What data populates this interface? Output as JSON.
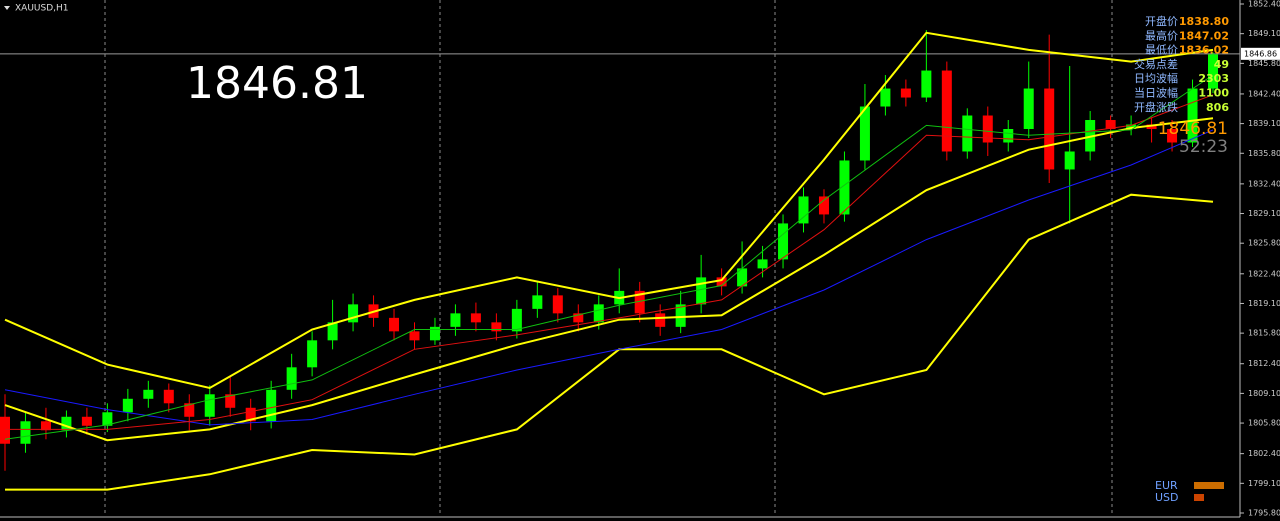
{
  "chart_data": {
    "type": "candlestick",
    "title": "XAUUSD,H1",
    "price_display": "1846.81",
    "countdown": "52:23",
    "last_price": {
      "value": 1846.86,
      "label": "1846.86"
    },
    "up_color": "#00ff00",
    "down_color": "#ff0000",
    "ylim": [
      1795.8,
      1852.4
    ],
    "yticks": [
      {
        "value": 1852.4,
        "label": "1852.40"
      },
      {
        "value": 1849.1,
        "label": "1849.10"
      },
      {
        "value": 1845.8,
        "label": "1845.80"
      },
      {
        "value": 1842.4,
        "label": "1842.40"
      },
      {
        "value": 1839.1,
        "label": "1839.10"
      },
      {
        "value": 1835.8,
        "label": "1835.80"
      },
      {
        "value": 1832.4,
        "label": "1832.40"
      },
      {
        "value": 1829.1,
        "label": "1829.10"
      },
      {
        "value": 1825.8,
        "label": "1825.80"
      },
      {
        "value": 1822.4,
        "label": "1822.40"
      },
      {
        "value": 1819.1,
        "label": "1819.10"
      },
      {
        "value": 1815.8,
        "label": "1815.80"
      },
      {
        "value": 1812.4,
        "label": "1812.40"
      },
      {
        "value": 1809.1,
        "label": "1809.10"
      },
      {
        "value": 1805.8,
        "label": "1805.80"
      },
      {
        "value": 1802.4,
        "label": "1802.40"
      },
      {
        "value": 1799.1,
        "label": "1799.10"
      },
      {
        "value": 1795.8,
        "label": "1795.80"
      }
    ],
    "open": [
      1806.5,
      1803.5,
      1806.0,
      1805.0,
      1806.5,
      1805.5,
      1807.0,
      1808.5,
      1809.5,
      1808.0,
      1806.5,
      1809.0,
      1807.5,
      1806.0,
      1809.5,
      1812.0,
      1815.0,
      1817.0,
      1819.0,
      1817.5,
      1816.0,
      1815.0,
      1816.5,
      1818.0,
      1817.0,
      1816.0,
      1818.5,
      1820.0,
      1818.0,
      1817.0,
      1819.0,
      1820.5,
      1818.0,
      1816.5,
      1819.0,
      1822.0,
      1821.0,
      1823.0,
      1824.0,
      1828.0,
      1831.0,
      1829.0,
      1835.0,
      1841.0,
      1843.0,
      1842.0,
      1845.0,
      1836.0,
      1840.0,
      1837.0,
      1838.5,
      1843.0,
      1834.0,
      1836.0,
      1839.5,
      1838.5,
      1839.0,
      1838.5,
      1837.0,
      1843.0
    ],
    "high": [
      1809.0,
      1807.0,
      1807.5,
      1807.2,
      1807.5,
      1808.0,
      1809.6,
      1810.5,
      1810.2,
      1809.0,
      1810.0,
      1811.0,
      1808.5,
      1810.5,
      1813.5,
      1816.0,
      1819.5,
      1820.2,
      1820.0,
      1818.5,
      1817.0,
      1817.5,
      1819.0,
      1819.2,
      1818.0,
      1819.5,
      1821.5,
      1820.8,
      1819.0,
      1820.0,
      1823.0,
      1821.5,
      1819.0,
      1820.5,
      1824.5,
      1823.0,
      1826.0,
      1825.5,
      1829.0,
      1832.0,
      1831.8,
      1836.0,
      1843.5,
      1844.5,
      1844.0,
      1849.5,
      1846.0,
      1840.8,
      1841.0,
      1839.5,
      1846.0,
      1849.0,
      1845.5,
      1840.5,
      1840.0,
      1840.0,
      1839.8,
      1839.5,
      1844.0,
      1847.0
    ],
    "low": [
      1800.5,
      1802.5,
      1804.0,
      1804.2,
      1804.5,
      1804.8,
      1806.0,
      1807.5,
      1807.0,
      1805.0,
      1805.5,
      1806.5,
      1805.0,
      1805.2,
      1808.5,
      1811.0,
      1814.0,
      1816.0,
      1816.5,
      1815.0,
      1814.0,
      1814.5,
      1815.5,
      1816.0,
      1815.0,
      1815.2,
      1817.5,
      1817.0,
      1816.0,
      1816.2,
      1818.0,
      1817.0,
      1815.5,
      1815.8,
      1818.0,
      1820.0,
      1820.2,
      1822.0,
      1823.0,
      1827.0,
      1828.0,
      1828.2,
      1834.0,
      1840.0,
      1841.0,
      1841.5,
      1835.0,
      1835.2,
      1835.5,
      1836.0,
      1837.5,
      1832.5,
      1828.0,
      1835.0,
      1837.5,
      1837.8,
      1837.0,
      1836.0,
      1836.5,
      1842.5
    ],
    "close": [
      1803.5,
      1806.0,
      1805.0,
      1806.5,
      1805.5,
      1807.0,
      1808.5,
      1809.5,
      1808.0,
      1806.5,
      1809.0,
      1807.5,
      1806.0,
      1809.5,
      1812.0,
      1815.0,
      1817.0,
      1819.0,
      1817.5,
      1816.0,
      1815.0,
      1816.5,
      1818.0,
      1817.0,
      1816.0,
      1818.5,
      1820.0,
      1818.0,
      1817.0,
      1819.0,
      1820.5,
      1818.0,
      1816.5,
      1819.0,
      1822.0,
      1821.0,
      1823.0,
      1824.0,
      1828.0,
      1831.0,
      1829.0,
      1835.0,
      1841.0,
      1843.0,
      1842.0,
      1845.0,
      1836.0,
      1840.0,
      1837.0,
      1838.5,
      1843.0,
      1834.0,
      1836.0,
      1839.5,
      1838.5,
      1839.0,
      1838.5,
      1837.0,
      1843.0,
      1846.8
    ],
    "line_x": [
      0,
      5,
      10,
      15,
      20,
      25,
      30,
      35,
      40,
      45,
      50,
      55,
      59
    ],
    "lines": [
      {
        "color": "#ffff00",
        "width": 2,
        "values": [
          1817.3,
          1812.3,
          1809.7,
          1816.2,
          1819.5,
          1822.0,
          1819.7,
          1821.7,
          1835.1,
          1849.2,
          1847.3,
          1846.0,
          1847.3
        ]
      },
      {
        "color": "#ffff00",
        "width": 2,
        "values": [
          1807.8,
          1803.9,
          1805.1,
          1807.8,
          1811.2,
          1814.5,
          1817.3,
          1817.8,
          1824.5,
          1831.7,
          1836.2,
          1838.6,
          1839.7
        ]
      },
      {
        "color": "#ffff00",
        "width": 2,
        "values": [
          1798.4,
          1798.4,
          1800.1,
          1802.8,
          1802.3,
          1805.1,
          1814.0,
          1814.0,
          1809.0,
          1811.7,
          1826.2,
          1831.2,
          1830.4
        ]
      },
      {
        "color": "#1a1aff",
        "width": 1,
        "values": [
          1809.5,
          1807.3,
          1805.6,
          1806.2,
          1809.0,
          1811.7,
          1814.0,
          1816.2,
          1820.6,
          1826.2,
          1830.6,
          1834.5,
          1838.4
        ]
      },
      {
        "color": "#e01010",
        "width": 1,
        "values": [
          1805.1,
          1805.1,
          1806.2,
          1808.4,
          1814.0,
          1815.6,
          1817.5,
          1819.5,
          1827.3,
          1837.8,
          1837.3,
          1838.9,
          1842.3
        ]
      },
      {
        "color": "#10c010",
        "width": 1,
        "values": [
          1804.0,
          1805.6,
          1808.4,
          1810.6,
          1816.2,
          1816.2,
          1818.9,
          1821.1,
          1830.6,
          1838.9,
          1837.8,
          1838.4,
          1844.5
        ]
      }
    ],
    "info": [
      {
        "label": "开盘价",
        "value": "1838.80"
      },
      {
        "label": "最高价",
        "value": "1847.02"
      },
      {
        "label": "最低价",
        "value": "1836.02"
      },
      {
        "label": "交易点差",
        "value": "49"
      },
      {
        "label": "日均波幅",
        "value": "2303"
      },
      {
        "label": "当日波幅",
        "value": "1100"
      },
      {
        "label": "开盘涨跌",
        "value": "806"
      }
    ],
    "legend": [
      "EUR",
      "USD"
    ]
  }
}
